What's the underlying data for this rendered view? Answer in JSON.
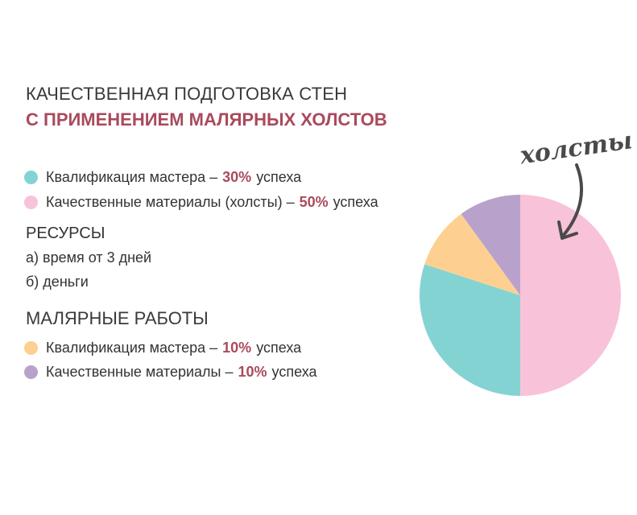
{
  "title": {
    "line1": "КАЧЕСТВЕННАЯ ПОДГОТОВКА СТЕН",
    "line2": "С ПРИМЕНЕНИЕМ МАЛЯРНЫХ ХОЛСТОВ"
  },
  "group1": [
    {
      "label": "Квалификация мастера –",
      "pct": "30%",
      "suffix": "успеха",
      "color": "#84d3d3"
    },
    {
      "label": "Качественные материалы (холсты) –",
      "pct": "50%",
      "suffix": "успеха",
      "color": "#f8c2d9"
    }
  ],
  "resources": {
    "title": "РЕСУРСЫ",
    "items": [
      "а) время от 3 дней",
      "б) деньги"
    ]
  },
  "section2": {
    "title": "МАЛЯРНЫЕ РАБОТЫ"
  },
  "group2": [
    {
      "label": "Квалификация мастера –",
      "pct": "10%",
      "suffix": "успеха",
      "color": "#fdd091"
    },
    {
      "label": "Качественные материалы –",
      "pct": "10%",
      "suffix": "успеха",
      "color": "#b8a2cc"
    }
  ],
  "annotation": "холсты",
  "chart_data": {
    "type": "pie",
    "slices": [
      {
        "label": "Качественные материалы (холсты)",
        "value": 50,
        "color": "#f8c2d9"
      },
      {
        "label": "Квалификация мастера",
        "value": 30,
        "color": "#84d3d3"
      },
      {
        "label": "Квалификация мастера (малярные работы)",
        "value": 10,
        "color": "#fdd091"
      },
      {
        "label": "Качественные материалы (малярные работы)",
        "value": 10,
        "color": "#b8a2cc"
      }
    ],
    "start": "12 o'clock",
    "direction": "clockwise",
    "legend": "left"
  }
}
